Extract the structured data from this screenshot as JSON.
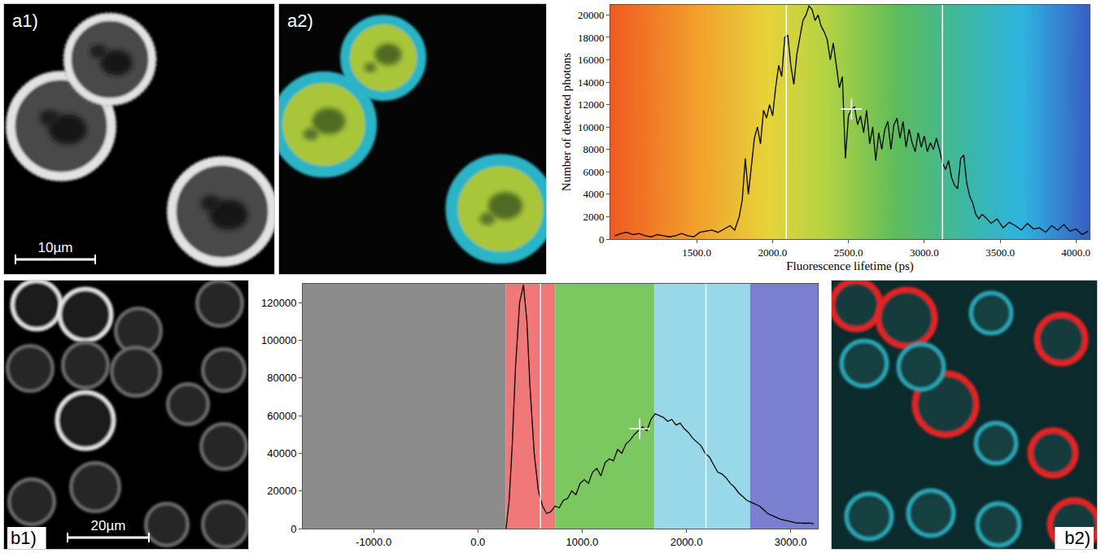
{
  "images": [
    {
      "label": "a1)",
      "scale_bar": "10µm"
    },
    {
      "label": "a2)"
    },
    {
      "label": "b1)",
      "scale_bar": "20µm"
    },
    {
      "label": "b2)"
    }
  ],
  "chart_data": [
    {
      "type": "line",
      "x_label": "Fluorescence lifetime (ps)",
      "y_label": "Number of detected photons",
      "color": "#000000",
      "x": [
        960,
        1000,
        1040,
        1080,
        1120,
        1160,
        1200,
        1240,
        1280,
        1320,
        1360,
        1400,
        1440,
        1480,
        1520,
        1560,
        1600,
        1640,
        1680,
        1720,
        1750,
        1780,
        1800,
        1820,
        1840,
        1860,
        1880,
        1900,
        1920,
        1940,
        1960,
        1980,
        2000,
        2020,
        2040,
        2060,
        2080,
        2100,
        2120,
        2140,
        2160,
        2180,
        2200,
        2220,
        2240,
        2260,
        2280,
        2300,
        2320,
        2340,
        2360,
        2380,
        2400,
        2420,
        2440,
        2460,
        2480,
        2500,
        2520,
        2540,
        2560,
        2580,
        2600,
        2620,
        2640,
        2660,
        2680,
        2700,
        2720,
        2740,
        2760,
        2780,
        2800,
        2820,
        2840,
        2860,
        2880,
        2900,
        2920,
        2940,
        2960,
        2980,
        3000,
        3020,
        3040,
        3060,
        3080,
        3100,
        3120,
        3140,
        3160,
        3180,
        3200,
        3220,
        3240,
        3260,
        3280,
        3300,
        3320,
        3340,
        3360,
        3380,
        3400,
        3440,
        3480,
        3520,
        3560,
        3600,
        3640,
        3680,
        3720,
        3760,
        3800,
        3840,
        3880,
        3920,
        3960,
        4000,
        4040,
        4080
      ],
      "values": [
        300,
        500,
        600,
        400,
        500,
        300,
        200,
        400,
        300,
        200,
        300,
        500,
        300,
        200,
        600,
        700,
        800,
        600,
        900,
        1200,
        800,
        2000,
        3500,
        7200,
        4000,
        6500,
        9000,
        10000,
        8500,
        11500,
        10800,
        12000,
        11000,
        13500,
        15500,
        14500,
        18000,
        18200,
        15500,
        13800,
        16500,
        18000,
        19500,
        20000,
        20800,
        20500,
        19500,
        20000,
        19000,
        18500,
        17800,
        16000,
        17500,
        15500,
        13500,
        14500,
        7200,
        11000,
        11600,
        11800,
        10200,
        11000,
        9500,
        11500,
        8500,
        10000,
        7000,
        9500,
        8000,
        9800,
        10500,
        8000,
        10200,
        10800,
        9000,
        10500,
        8200,
        9800,
        8600,
        7800,
        9500,
        8200,
        9200,
        7800,
        8600,
        8000,
        9000,
        8000,
        6800,
        6200,
        7000,
        5500,
        4800,
        4500,
        7200,
        7500,
        5000,
        3800,
        3200,
        2200,
        1800,
        2200,
        2000,
        1400,
        1800,
        1000,
        1500,
        1200,
        800,
        1400,
        900,
        1000,
        600,
        1200,
        800,
        1300,
        700,
        900,
        400,
        700
      ],
      "xlim": [
        930,
        4090
      ],
      "ylim": [
        0,
        20900
      ],
      "xticks": [
        {
          "value": 1500,
          "label": "1500.0"
        },
        {
          "value": 2000,
          "label": "2000.0"
        },
        {
          "value": 2500,
          "label": "2500.0"
        },
        {
          "value": 3000,
          "label": "3000.0"
        },
        {
          "value": 3500,
          "label": "3500.0"
        },
        {
          "value": 4000,
          "label": "4000.0"
        }
      ],
      "yticks": [
        0,
        2000,
        4000,
        6000,
        8000,
        10000,
        12000,
        14000,
        16000,
        18000,
        20000
      ],
      "grid": false,
      "cursor_lines": [
        2090,
        3120
      ],
      "cursor": {
        "x": 2520,
        "y": 11600
      }
    },
    {
      "type": "line",
      "color": "#000000",
      "x": [
        270,
        300,
        330,
        360,
        400,
        437,
        470,
        500,
        540,
        580,
        620,
        660,
        700,
        740,
        780,
        820,
        860,
        900,
        940,
        980,
        1020,
        1060,
        1100,
        1140,
        1180,
        1220,
        1260,
        1300,
        1340,
        1380,
        1420,
        1460,
        1500,
        1540,
        1580,
        1620,
        1660,
        1700,
        1740,
        1780,
        1820,
        1860,
        1900,
        1940,
        1980,
        2020,
        2060,
        2100,
        2140,
        2180,
        2220,
        2260,
        2300,
        2340,
        2380,
        2420,
        2460,
        2500,
        2540,
        2580,
        2620,
        2660,
        2700,
        2740,
        2780,
        2820,
        2860,
        2900,
        2940,
        2980,
        3020,
        3060,
        3100,
        3140,
        3180,
        3220
      ],
      "values": [
        0,
        15000,
        45000,
        85000,
        120000,
        129500,
        110000,
        75000,
        40000,
        20000,
        12000,
        8000,
        9000,
        12000,
        11000,
        15000,
        16000,
        20000,
        18000,
        24000,
        26000,
        24000,
        30000,
        32000,
        28000,
        35000,
        37000,
        36000,
        42000,
        40000,
        45000,
        47000,
        50000,
        52000,
        54000,
        52000,
        58000,
        61000,
        60000,
        59000,
        57000,
        58000,
        55000,
        56000,
        53000,
        51000,
        48000,
        46000,
        44000,
        40000,
        38000,
        34000,
        30000,
        29000,
        27000,
        24000,
        22000,
        19000,
        17000,
        15000,
        14000,
        13000,
        12000,
        10000,
        8000,
        7000,
        6000,
        5000,
        4500,
        4000,
        3500,
        3000,
        3000,
        2800,
        3000,
        2500
      ],
      "xlim": [
        -1680,
        3260
      ],
      "ylim": [
        0,
        130000
      ],
      "xticks": [
        {
          "value": -1000,
          "label": "-1000.0"
        },
        {
          "value": 0,
          "label": "0.0"
        },
        {
          "value": 1000,
          "label": "1000.0"
        },
        {
          "value": 2000,
          "label": "2000.0"
        },
        {
          "value": 3000,
          "label": "3000.0"
        }
      ],
      "yticks": [
        0,
        20000,
        40000,
        60000,
        80000,
        100000,
        120000
      ],
      "grid": false,
      "regions": [
        {
          "from": -1680,
          "to": 268,
          "color": "#8c8c8c"
        },
        {
          "from": 268,
          "to": 741,
          "color": "#f07878"
        },
        {
          "from": 741,
          "to": 1693,
          "color": "#7cc860"
        },
        {
          "from": 1693,
          "to": 2610,
          "color": "#98d8e8"
        },
        {
          "from": 2610,
          "to": 3260,
          "color": "#7b7fcf"
        }
      ],
      "cursor_lines": [
        600,
        2187
      ],
      "cursor": {
        "x": 1552,
        "y": 53000
      }
    }
  ]
}
